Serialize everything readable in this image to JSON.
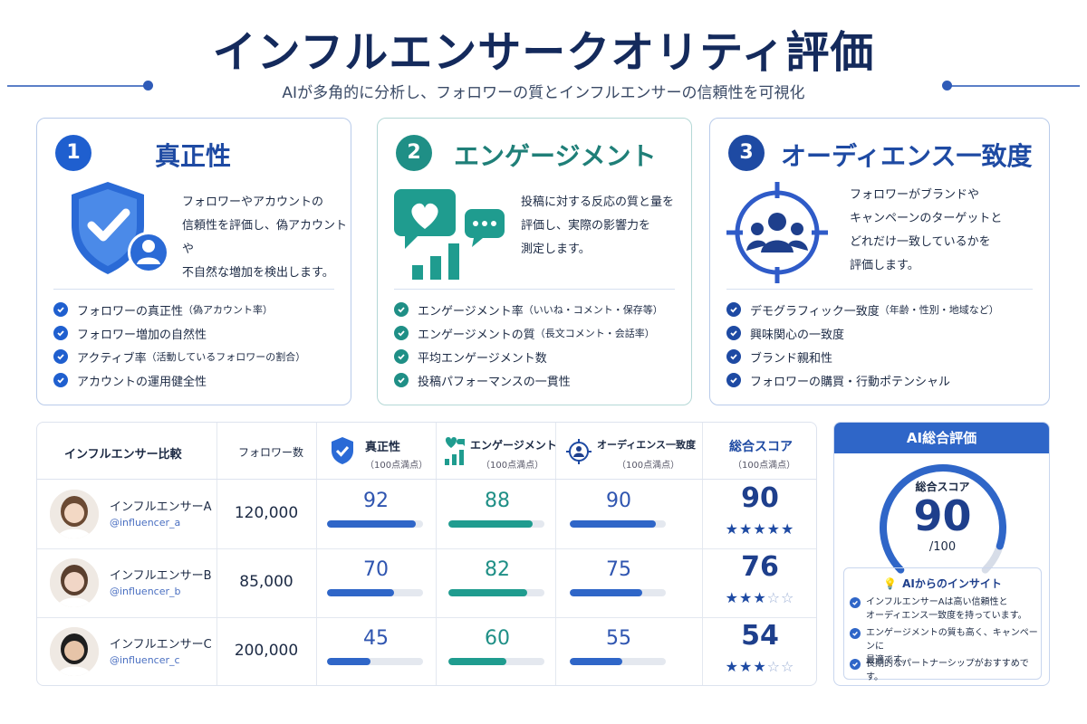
{
  "header": {
    "title": "インフルエンサークオリティ評価",
    "subtitle": "AIが多角的に分析し、フォロワーの質とインフルエンサーの信頼性を可視化"
  },
  "colors": {
    "blue": "#2f66c8",
    "teal": "#1f8f86",
    "navy": "#1e3f8c"
  },
  "cards": [
    {
      "number": "1",
      "title": "真正性",
      "icon": "shield-check-user-icon",
      "description_lines": [
        "フォロワーやアカウントの",
        "信頼性を評価し、偽アカウントや",
        "不自然な増加を検出します。"
      ],
      "items": [
        {
          "main": "フォロワーの真正性",
          "sub": "（偽アカウント率）"
        },
        {
          "main": "フォロワー増加の自然性",
          "sub": ""
        },
        {
          "main": "アクティブ率",
          "sub": "（活動しているフォロワーの割合）"
        },
        {
          "main": "アカウントの運用健全性",
          "sub": ""
        }
      ]
    },
    {
      "number": "2",
      "title": "エンゲージメント",
      "icon": "heart-chat-chart-icon",
      "description_lines": [
        "投稿に対する反応の質と量を",
        "評価し、実際の影響力を",
        "測定します。"
      ],
      "items": [
        {
          "main": "エンゲージメント率",
          "sub": "（いいね・コメント・保存等）"
        },
        {
          "main": "エンゲージメントの質",
          "sub": "（長文コメント・会話率）"
        },
        {
          "main": "平均エンゲージメント数",
          "sub": ""
        },
        {
          "main": "投稿パフォーマンスの一貫性",
          "sub": ""
        }
      ]
    },
    {
      "number": "3",
      "title": "オーディエンス一致度",
      "icon": "target-audience-icon",
      "description_lines": [
        "フォロワーがブランドや",
        "キャンペーンのターゲットと",
        "どれだけ一致しているかを",
        "評価します。"
      ],
      "items": [
        {
          "main": "デモグラフィック一致度",
          "sub": "（年齢・性別・地域など）"
        },
        {
          "main": "興味関心の一致度",
          "sub": ""
        },
        {
          "main": "ブランド親和性",
          "sub": ""
        },
        {
          "main": "フォロワーの購買・行動ポテンシャル",
          "sub": ""
        }
      ]
    }
  ],
  "table": {
    "headers": {
      "influencer": "インフルエンサー比較",
      "followers": "フォロワー数",
      "authenticity": "真正性",
      "engagement": "エンゲージメント",
      "audience": "オーディエンス一致度",
      "total": "総合スコア",
      "per100": "（100点満点）"
    },
    "rows": [
      {
        "name": "インフルエンサーA",
        "handle": "@influencer_a",
        "followers": "120,000",
        "authenticity": "92",
        "engagement": "88",
        "audience": "90",
        "total": "90",
        "stars": 4.5
      },
      {
        "name": "インフルエンサーB",
        "handle": "@influencer_b",
        "followers": "85,000",
        "authenticity": "70",
        "engagement": "82",
        "audience": "75",
        "total": "76",
        "stars": 3
      },
      {
        "name": "インフルエンサーC",
        "handle": "@influencer_c",
        "followers": "200,000",
        "authenticity": "45",
        "engagement": "60",
        "audience": "55",
        "total": "54",
        "stars": 3
      }
    ]
  },
  "ai_panel": {
    "title": "AI総合評価",
    "score_label": "総合スコア",
    "score": "90",
    "score_max": "/100",
    "insight_title": "AIからのインサイト",
    "insights": [
      [
        "インフルエンサーAは高い信頼性と",
        "オーディエンス一致度を持っています。"
      ],
      [
        "エンゲージメントの質も高く、キャンペーンに",
        "最適です。"
      ],
      [
        "長期的なパートナーシップがおすすめです。"
      ]
    ]
  }
}
